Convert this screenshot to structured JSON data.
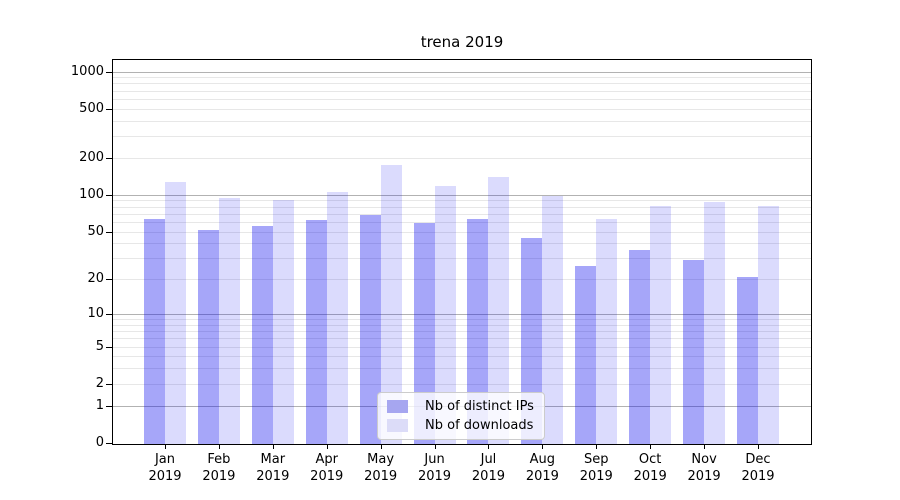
{
  "figure_title": "trena 2019",
  "chart_data": {
    "type": "bar",
    "title": "trena 2019",
    "x": {
      "months": [
        "Jan",
        "Feb",
        "Mar",
        "Apr",
        "May",
        "Jun",
        "Jul",
        "Aug",
        "Sep",
        "Oct",
        "Nov",
        "Dec"
      ],
      "year": "2019"
    },
    "categories": [
      "Jan 2019",
      "Feb 2019",
      "Mar 2019",
      "Apr 2019",
      "May 2019",
      "Jun 2019",
      "Jul 2019",
      "Aug 2019",
      "Sep 2019",
      "Oct 2019",
      "Nov 2019",
      "Dec 2019"
    ],
    "series": [
      {
        "key": "distinct-ips",
        "name": "Nb of distinct IPs",
        "color": "rgba(0,0,238,0.35)",
        "swatch_color": "#a6a6f0",
        "values": [
          64,
          52,
          56,
          62,
          68,
          59,
          64,
          44,
          26,
          35,
          29,
          21
        ]
      },
      {
        "key": "downloads",
        "name": "Nb of downloads",
        "color": "rgba(0,0,238,0.14)",
        "swatch_color": "#dcdcf8",
        "values": [
          127,
          95,
          90,
          105,
          175,
          118,
          140,
          97,
          63,
          81,
          87,
          81
        ]
      }
    ],
    "xlabel": "",
    "ylabel": "",
    "yscale": "symlog (log1p)",
    "ylim": [
      0,
      1200
    ],
    "y_ticks": [
      0,
      1,
      2,
      5,
      10,
      20,
      50,
      100,
      200,
      500,
      1000
    ],
    "y_major_gridlines": [
      1,
      10,
      100,
      1000
    ],
    "y_minor_gridlines": [
      2,
      3,
      4,
      5,
      6,
      7,
      8,
      9,
      20,
      30,
      40,
      50,
      60,
      70,
      80,
      90,
      200,
      300,
      400,
      500,
      600,
      700,
      800,
      900
    ],
    "grid": "on",
    "legend_position": "lower center",
    "colors": {
      "grid_major": "#b2b2b2",
      "grid_minor": "#e7e7e7",
      "spine": "#000000",
      "text": "#000000",
      "legend_border": "#cccccc",
      "legend_bg": "rgba(255,255,255,0.8)"
    }
  }
}
